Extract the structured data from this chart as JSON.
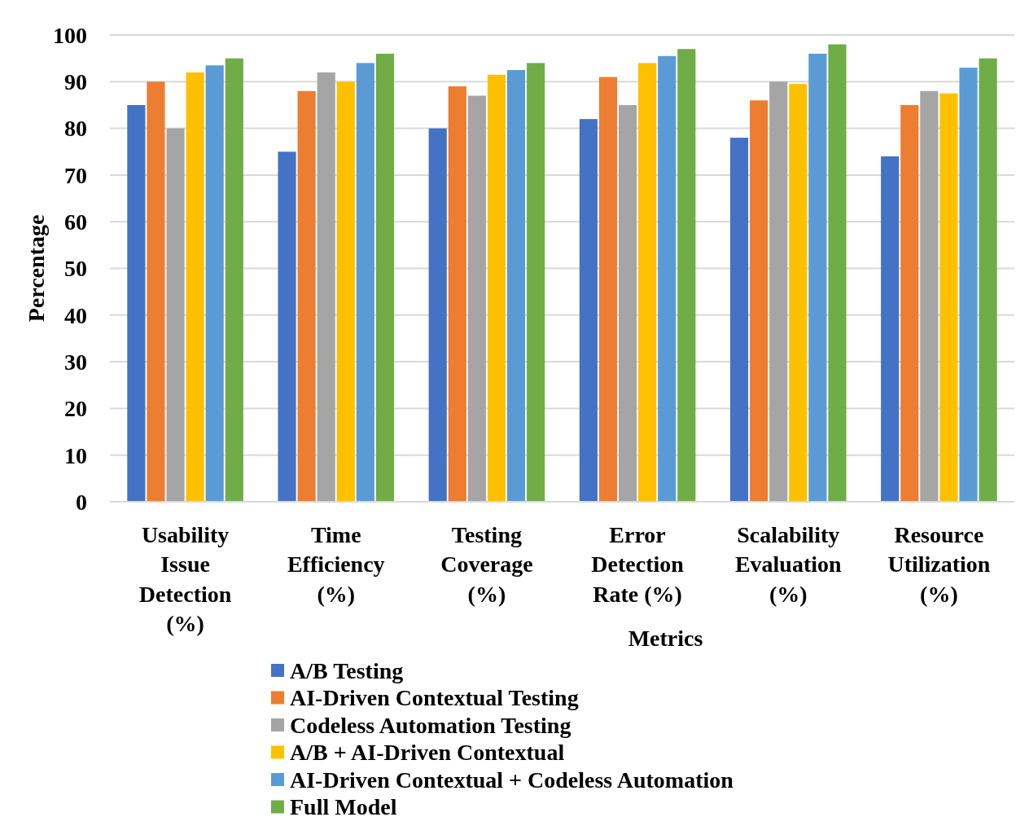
{
  "chart_data": {
    "type": "bar",
    "xlabel": "Metrics",
    "ylabel": "Percentage",
    "categories": [
      "Usability Issue Detection (%)",
      "Time Efficiency (%)",
      "Testing Coverage (%)",
      "Error Detection Rate (%)",
      "Scalability Evaluation (%)",
      "Resource Utilization (%)"
    ],
    "series": [
      {
        "name": "A/B Testing",
        "color": "#4472c4",
        "values": [
          85,
          75,
          80,
          82,
          78,
          74
        ]
      },
      {
        "name": "AI-Driven Contextual Testing",
        "color": "#ed7d31",
        "values": [
          90,
          88,
          89,
          91,
          86,
          85
        ]
      },
      {
        "name": "Codeless Automation Testing",
        "color": "#a5a5a5",
        "values": [
          80,
          92,
          87,
          85,
          90,
          88
        ]
      },
      {
        "name": "A/B + AI-Driven Contextual",
        "color": "#ffc000",
        "values": [
          92,
          90,
          91.5,
          94,
          89.5,
          87.5
        ]
      },
      {
        "name": "AI-Driven Contextual + Codeless Automation",
        "color": "#5b9bd5",
        "values": [
          93.5,
          94,
          92.5,
          95.5,
          96,
          93
        ]
      },
      {
        "name": "Full Model",
        "color": "#70ad47",
        "values": [
          95,
          96,
          94,
          97,
          98,
          95
        ]
      }
    ],
    "ylim": [
      0,
      100
    ],
    "yticks": [
      0,
      10,
      20,
      30,
      40,
      50,
      60,
      70,
      80,
      90,
      100
    ],
    "grid": "y",
    "legend": "bottom"
  }
}
